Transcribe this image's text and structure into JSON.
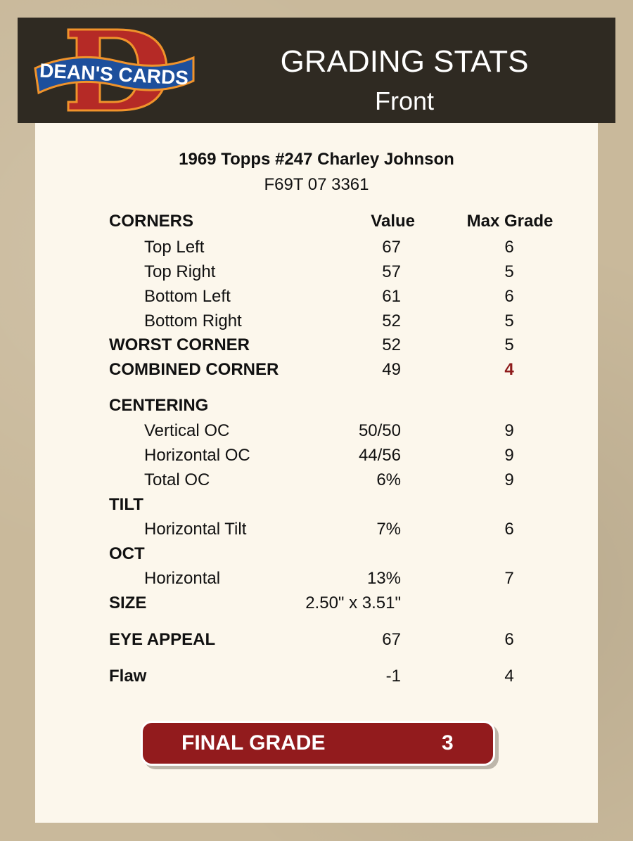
{
  "header": {
    "logo_text": "DEAN'S CARDS",
    "title": "GRADING STATS",
    "subtitle": "Front"
  },
  "card": {
    "name": "1969 Topps #247 Charley Johnson",
    "cert": "F69T 07 3361"
  },
  "columns": {
    "value": "Value",
    "max_grade": "Max Grade"
  },
  "colors": {
    "accent": "#921b1d",
    "header_bg": "#2f2a22",
    "panel_bg": "#fcf7ec"
  },
  "rows": [
    {
      "label": "CORNERS",
      "type": "colhead"
    },
    {
      "label": "Top Left",
      "value": "67",
      "max": "6",
      "type": "sub"
    },
    {
      "label": "Top Right",
      "value": "57",
      "max": "5",
      "type": "sub"
    },
    {
      "label": "Bottom Left",
      "value": "61",
      "max": "6",
      "type": "sub"
    },
    {
      "label": "Bottom Right",
      "value": "52",
      "max": "5",
      "type": "sub"
    },
    {
      "label": "WORST CORNER",
      "value": "52",
      "max": "5",
      "type": "head"
    },
    {
      "label": "COMBINED CORNER",
      "value": "49",
      "max": "4",
      "type": "head",
      "highlight": true
    },
    {
      "label": "CENTERING",
      "type": "head"
    },
    {
      "label": "Vertical OC",
      "value": "50/50",
      "max": "9",
      "type": "sub"
    },
    {
      "label": "Horizontal OC",
      "value": "44/56",
      "max": "9",
      "type": "sub"
    },
    {
      "label": "Total OC",
      "value": "6%",
      "max": "9",
      "type": "sub"
    },
    {
      "label": "TILT",
      "type": "head"
    },
    {
      "label": "Horizontal Tilt",
      "value": "7%",
      "max": "6",
      "type": "sub"
    },
    {
      "label": "OCT",
      "type": "head"
    },
    {
      "label": "Horizontal",
      "value": "13%",
      "max": "7",
      "type": "sub"
    },
    {
      "label": "SIZE",
      "value": "2.50\" x 3.51\"",
      "type": "head"
    },
    {
      "label": "EYE APPEAL",
      "value": "67",
      "max": "6",
      "type": "head"
    },
    {
      "label": "Flaw",
      "value": "-1",
      "max": "4",
      "type": "head"
    }
  ],
  "final_grade": {
    "label": "FINAL GRADE",
    "value": "3"
  }
}
